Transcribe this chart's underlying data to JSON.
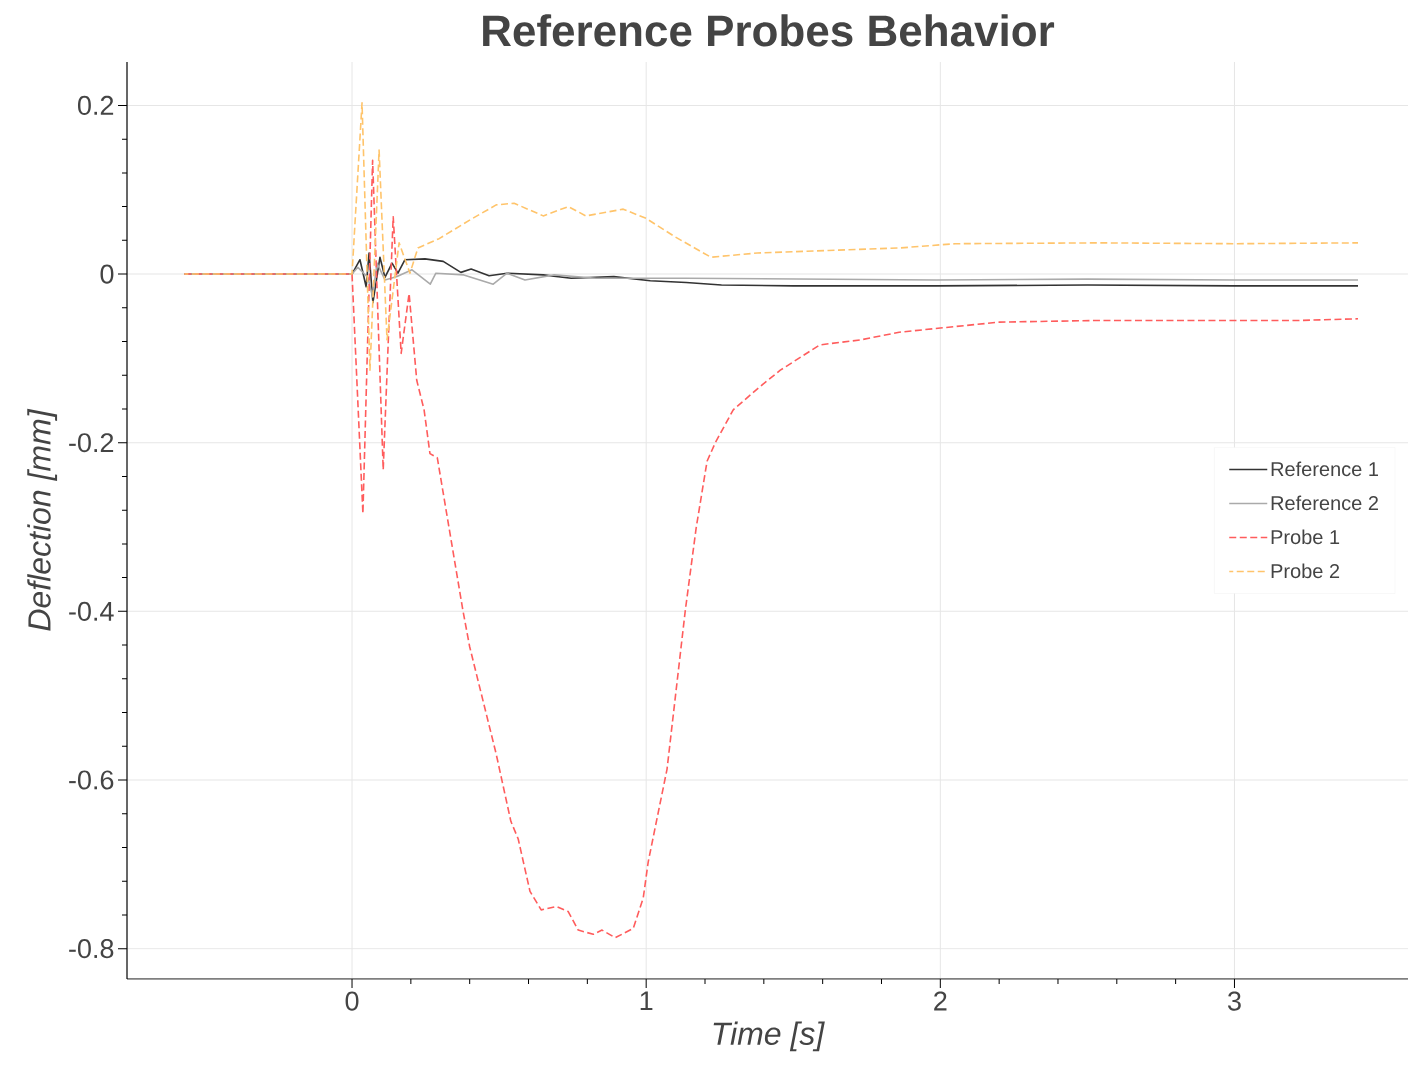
{
  "chart_data": {
    "type": "line",
    "title": "Reference Probes Behavior",
    "xlabel": "Time [s]",
    "ylabel": "Deflection [mm]",
    "xlim": [
      -0.765,
      3.59
    ],
    "ylim": [
      -0.836,
      0.2515
    ],
    "xticks": [
      0,
      1,
      2,
      3
    ],
    "yticks": [
      0.2,
      0,
      -0.2,
      -0.4,
      -0.6,
      -0.8
    ],
    "grid": true,
    "legend": "right",
    "series": [
      {
        "name": "Reference 1",
        "color": "#333333",
        "line_style": "solid",
        "x": [
          -0.57,
          0,
          0.027,
          0.048,
          0.058,
          0.071,
          0.095,
          0.112,
          0.136,
          0.156,
          0.18,
          0.248,
          0.31,
          0.37,
          0.405,
          0.466,
          0.527,
          0.65,
          0.745,
          0.89,
          1.014,
          1.136,
          1.256,
          1.5,
          1.986,
          2.5,
          3.0,
          3.42
        ],
        "values": [
          0,
          0,
          0.017,
          -0.015,
          0.025,
          -0.034,
          0.02,
          -0.004,
          0.013,
          0.001,
          0.017,
          0.018,
          0.015,
          0.002,
          0.006,
          -0.002,
          0.001,
          -0.001,
          -0.005,
          -0.003,
          -0.008,
          -0.01,
          -0.013,
          -0.014,
          -0.014,
          -0.013,
          -0.014,
          -0.014
        ]
      },
      {
        "name": "Reference 2",
        "color": "#aaaaaa",
        "line_style": "solid",
        "x": [
          -0.57,
          0,
          0.02,
          0.054,
          0.07,
          0.085,
          0.112,
          0.153,
          0.204,
          0.266,
          0.285,
          0.38,
          0.48,
          0.527,
          0.588,
          0.687,
          0.83,
          1.136,
          1.986,
          2.5,
          3.0,
          3.42
        ],
        "values": [
          0,
          0,
          0.008,
          -0.004,
          -0.027,
          0.013,
          -0.007,
          -0.003,
          0.005,
          -0.012,
          0.001,
          -0.001,
          -0.012,
          0.001,
          -0.007,
          -0.001,
          -0.005,
          -0.005,
          -0.007,
          -0.006,
          -0.007,
          -0.007
        ]
      },
      {
        "name": "Probe 1",
        "color": "#ff5c5c",
        "line_style": "dashed",
        "x": [
          -0.57,
          0,
          0.037,
          0.07,
          0.106,
          0.14,
          0.167,
          0.194,
          0.22,
          0.245,
          0.265,
          0.29,
          0.377,
          0.4,
          0.49,
          0.54,
          0.565,
          0.605,
          0.643,
          0.694,
          0.735,
          0.769,
          0.82,
          0.85,
          0.895,
          0.956,
          0.99,
          1.007,
          1.071,
          1.133,
          1.17,
          1.207,
          1.235,
          1.296,
          1.385,
          1.456,
          1.59,
          1.73,
          1.86,
          2.0,
          2.2,
          2.54,
          2.88,
          3.22,
          3.42
        ],
        "values": [
          0,
          0,
          -0.284,
          0.135,
          -0.232,
          0.068,
          -0.094,
          -0.023,
          -0.126,
          -0.161,
          -0.213,
          -0.218,
          -0.399,
          -0.442,
          -0.569,
          -0.649,
          -0.67,
          -0.732,
          -0.754,
          -0.75,
          -0.756,
          -0.778,
          -0.783,
          -0.778,
          -0.787,
          -0.776,
          -0.74,
          -0.697,
          -0.587,
          -0.399,
          -0.301,
          -0.222,
          -0.2,
          -0.161,
          -0.134,
          -0.114,
          -0.084,
          -0.078,
          -0.069,
          -0.064,
          -0.057,
          -0.055,
          -0.055,
          -0.055,
          -0.053
        ]
      },
      {
        "name": "Probe 2",
        "color": "#ffc46b",
        "line_style": "dashed",
        "x": [
          -0.57,
          0,
          0.034,
          0.061,
          0.092,
          0.119,
          0.16,
          0.197,
          0.224,
          0.296,
          0.405,
          0.49,
          0.551,
          0.65,
          0.735,
          0.795,
          0.922,
          1.0,
          1.099,
          1.22,
          1.378,
          1.62,
          1.864,
          2.05,
          2.54,
          3.0,
          3.42
        ],
        "values": [
          0,
          0,
          0.203,
          -0.114,
          0.147,
          -0.078,
          0.037,
          0.001,
          0.031,
          0.042,
          0.065,
          0.082,
          0.084,
          0.069,
          0.08,
          0.069,
          0.077,
          0.066,
          0.044,
          0.02,
          0.025,
          0.028,
          0.031,
          0.036,
          0.037,
          0.036,
          0.037
        ]
      }
    ]
  }
}
